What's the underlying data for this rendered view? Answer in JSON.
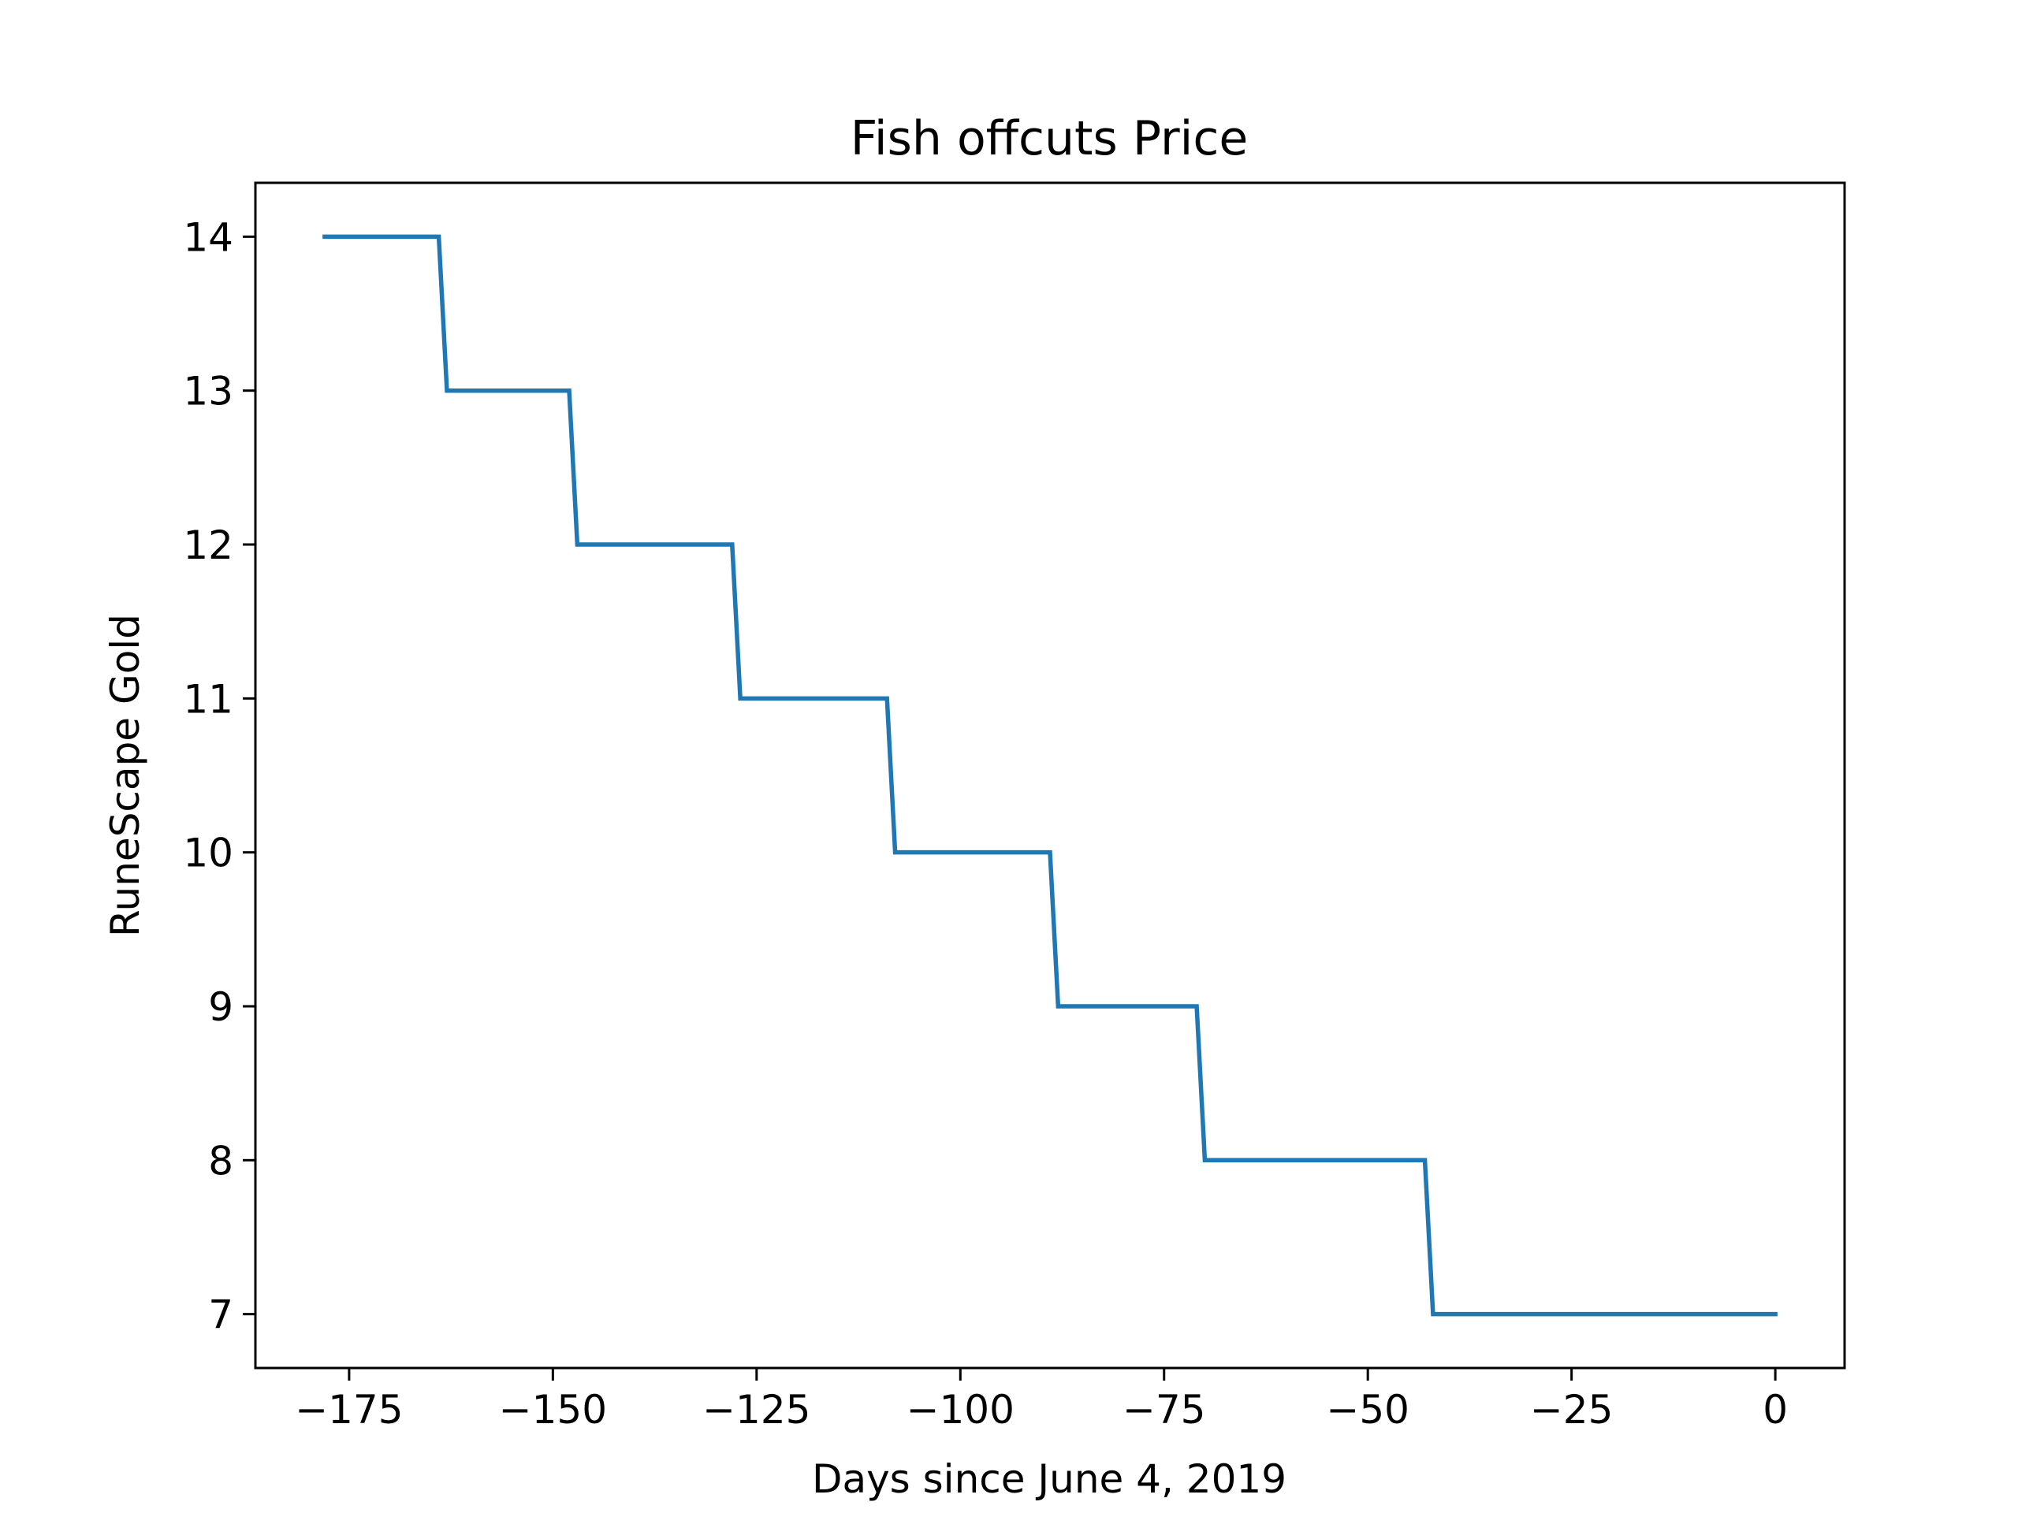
{
  "chart_data": {
    "type": "line",
    "title": "Fish offcuts Price",
    "xlabel": "Days since June 4, 2019",
    "ylabel": "RuneScape Gold",
    "xlim": [
      -186.5,
      8.5
    ],
    "ylim": [
      6.65,
      14.35
    ],
    "xticks": [
      -175,
      -150,
      -125,
      -100,
      -75,
      -50,
      -25,
      0
    ],
    "xtick_labels": [
      "−175",
      "−150",
      "−125",
      "−100",
      "−75",
      "−50",
      "−25",
      "0"
    ],
    "yticks": [
      7,
      8,
      9,
      10,
      11,
      12,
      13,
      14
    ],
    "ytick_labels": [
      "7",
      "8",
      "9",
      "10",
      "11",
      "12",
      "13",
      "14"
    ],
    "grid": false,
    "series": [
      {
        "color": "#1f77b4",
        "x": [
          -178,
          -164,
          -163,
          -148,
          -147,
          -128,
          -127,
          -109,
          -108,
          -89,
          -88,
          -71,
          -70,
          -43,
          -42,
          0
        ],
        "y": [
          14,
          14,
          13,
          13,
          12,
          12,
          11,
          11,
          10,
          10,
          9,
          9,
          8,
          8,
          7,
          7
        ]
      }
    ]
  }
}
